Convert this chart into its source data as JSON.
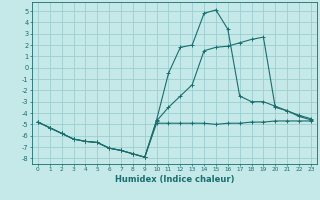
{
  "xlabel": "Humidex (Indice chaleur)",
  "bg_color": "#c5e8e8",
  "grid_color": "#9ccece",
  "line_color": "#1a6e6e",
  "xlim": [
    -0.5,
    23.5
  ],
  "ylim": [
    -8.5,
    5.8
  ],
  "xticks": [
    0,
    1,
    2,
    3,
    4,
    5,
    6,
    7,
    8,
    9,
    10,
    11,
    12,
    13,
    14,
    15,
    16,
    17,
    18,
    19,
    20,
    21,
    22,
    23
  ],
  "yticks": [
    -8,
    -7,
    -6,
    -5,
    -4,
    -3,
    -2,
    -1,
    0,
    1,
    2,
    3,
    4,
    5
  ],
  "line1_x": [
    0,
    1,
    2,
    3,
    4,
    5,
    6,
    7,
    8,
    9,
    10,
    11,
    12,
    13,
    14,
    15,
    16,
    17,
    18,
    19,
    20,
    21,
    22,
    23
  ],
  "line1_y": [
    -4.8,
    -5.3,
    -5.8,
    -6.3,
    -6.5,
    -6.6,
    -7.1,
    -7.3,
    -7.6,
    -7.9,
    -4.9,
    -4.9,
    -4.9,
    -4.9,
    -4.9,
    -5.0,
    -4.9,
    -4.9,
    -4.8,
    -4.8,
    -4.7,
    -4.7,
    -4.7,
    -4.7
  ],
  "line2_x": [
    0,
    1,
    2,
    3,
    4,
    5,
    6,
    7,
    8,
    9,
    10,
    11,
    12,
    13,
    14,
    15,
    16,
    17,
    18,
    19,
    20,
    21,
    22,
    23
  ],
  "line2_y": [
    -4.8,
    -5.3,
    -5.8,
    -6.3,
    -6.5,
    -6.6,
    -7.1,
    -7.3,
    -7.6,
    -7.9,
    -4.6,
    -0.5,
    1.8,
    2.0,
    4.8,
    5.1,
    3.4,
    -2.5,
    -3.0,
    -3.0,
    -3.4,
    -3.8,
    -4.3,
    -4.6
  ],
  "line3_x": [
    0,
    1,
    2,
    3,
    4,
    5,
    6,
    7,
    8,
    9,
    10,
    11,
    12,
    13,
    14,
    15,
    16,
    17,
    18,
    19,
    20,
    21,
    22,
    23
  ],
  "line3_y": [
    -4.8,
    -5.3,
    -5.8,
    -6.3,
    -6.5,
    -6.6,
    -7.1,
    -7.3,
    -7.6,
    -7.9,
    -4.7,
    -3.5,
    -2.5,
    -1.5,
    1.5,
    1.8,
    1.9,
    2.2,
    2.5,
    2.7,
    -3.5,
    -3.8,
    -4.2,
    -4.5
  ]
}
